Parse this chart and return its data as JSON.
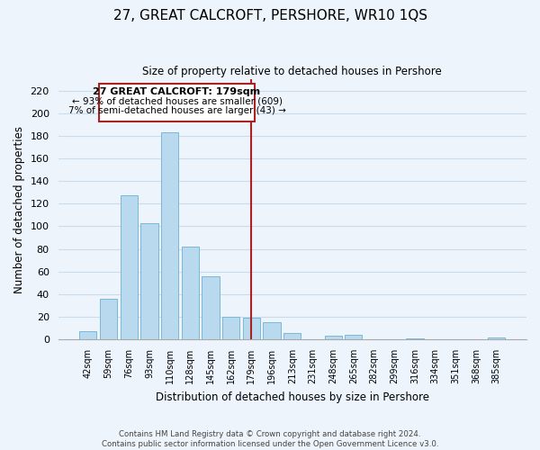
{
  "title": "27, GREAT CALCROFT, PERSHORE, WR10 1QS",
  "subtitle": "Size of property relative to detached houses in Pershore",
  "xlabel": "Distribution of detached houses by size in Pershore",
  "ylabel": "Number of detached properties",
  "bar_labels": [
    "42sqm",
    "59sqm",
    "76sqm",
    "93sqm",
    "110sqm",
    "128sqm",
    "145sqm",
    "162sqm",
    "179sqm",
    "196sqm",
    "213sqm",
    "231sqm",
    "248sqm",
    "265sqm",
    "282sqm",
    "299sqm",
    "316sqm",
    "334sqm",
    "351sqm",
    "368sqm",
    "385sqm"
  ],
  "bar_values": [
    7,
    36,
    127,
    103,
    183,
    82,
    56,
    20,
    19,
    15,
    6,
    0,
    3,
    4,
    0,
    0,
    1,
    0,
    0,
    0,
    2
  ],
  "bar_color": "#b8d9ee",
  "bar_edge_color": "#7ab8d9",
  "vline_x_index": 8,
  "vline_color": "#aa2222",
  "annotation_title": "27 GREAT CALCROFT: 179sqm",
  "annotation_line1": "← 93% of detached houses are smaller (609)",
  "annotation_line2": "7% of semi-detached houses are larger (43) →",
  "ylim": [
    0,
    230
  ],
  "yticks": [
    0,
    20,
    40,
    60,
    80,
    100,
    120,
    140,
    160,
    180,
    200,
    220
  ],
  "footer_line1": "Contains HM Land Registry data © Crown copyright and database right 2024.",
  "footer_line2": "Contains public sector information licensed under the Open Government Licence v3.0.",
  "background_color": "#eef4fb",
  "grid_color": "#c8dcee"
}
